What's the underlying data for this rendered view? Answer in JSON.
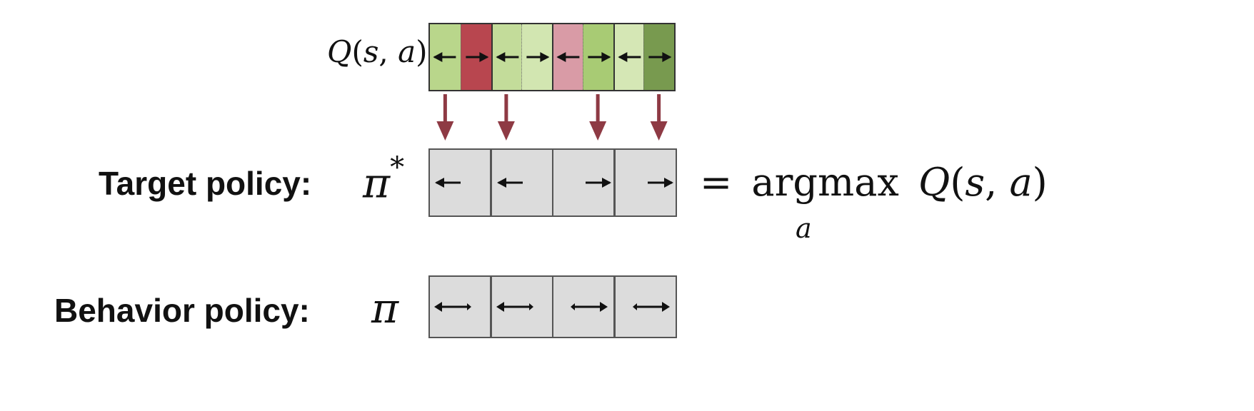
{
  "q_label": {
    "q": "Q",
    "open": "(",
    "s": "s",
    "comma": ", ",
    "a": "a",
    "close": ")"
  },
  "q_cells": [
    {
      "direction": "left",
      "color": "#b9d68b"
    },
    {
      "direction": "right",
      "color": "#b8464f"
    },
    {
      "direction": "left",
      "color": "#c3dc9a"
    },
    {
      "direction": "right",
      "color": "#d2e6b1"
    },
    {
      "direction": "left",
      "color": "#d99ba6"
    },
    {
      "direction": "right",
      "color": "#a8cb74"
    },
    {
      "direction": "left",
      "color": "#d5e7b5"
    },
    {
      "direction": "right",
      "color": "#789a4f"
    }
  ],
  "target": {
    "label": "Target policy:",
    "symbol": "π",
    "superscript": "*",
    "cells": [
      "left",
      "left",
      "right",
      "right"
    ],
    "equation": {
      "equals": "=",
      "op": "argmax",
      "sub": "a",
      "q": "Q",
      "open": "(",
      "s": "s",
      "comma": ", ",
      "a": "a",
      "close": ")"
    }
  },
  "behavior": {
    "label": "Behavior policy:",
    "symbol": "π",
    "cells": [
      "left-major",
      "left-major",
      "right-major",
      "right-major"
    ]
  },
  "colors": {
    "arrow": "#8e3a44",
    "cell_fill": "#dcdcdc",
    "cell_border": "#555555"
  }
}
